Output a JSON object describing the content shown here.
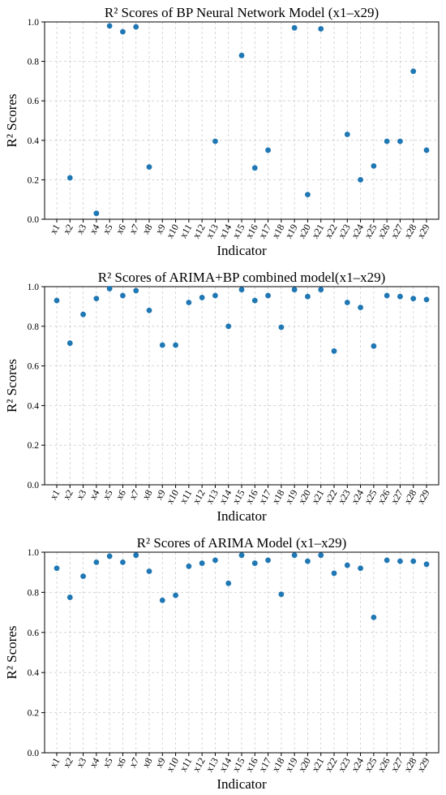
{
  "figure": {
    "colors": {
      "point": "#1f77b4",
      "grid": "#cccccc",
      "axis": "#000000"
    }
  },
  "chart_data": [
    {
      "type": "scatter",
      "title": "R² Scores of BP Neural Network Model (x1–x29)",
      "xlabel": "Indicator",
      "ylabel": "R² Scores",
      "ylim": [
        0.0,
        1.0
      ],
      "yticks": [
        "0.0",
        "0.2",
        "0.4",
        "0.6",
        "0.8",
        "1.0"
      ],
      "grid": true,
      "categories": [
        "x1",
        "x2",
        "x3",
        "x4",
        "x5",
        "x6",
        "x7",
        "x8",
        "x9",
        "x10",
        "x11",
        "x12",
        "x13",
        "x14",
        "x15",
        "x16",
        "x17",
        "x18",
        "x19",
        "x20",
        "x21",
        "x22",
        "x23",
        "x24",
        "x25",
        "x26",
        "x27",
        "x28",
        "x29"
      ],
      "values": [
        null,
        0.21,
        null,
        0.03,
        0.98,
        0.95,
        0.975,
        0.265,
        null,
        null,
        null,
        null,
        0.395,
        null,
        0.83,
        0.26,
        0.35,
        null,
        0.97,
        0.125,
        0.965,
        null,
        0.43,
        0.2,
        0.27,
        0.395,
        0.395,
        0.75,
        0.35
      ]
    },
    {
      "type": "scatter",
      "title": "R² Scores of ARIMA+BP combined model(x1–x29)",
      "xlabel": "Indicator",
      "ylabel": "R² Scores",
      "ylim": [
        0.0,
        1.0
      ],
      "yticks": [
        "0.0",
        "0.2",
        "0.4",
        "0.6",
        "0.8",
        "1.0"
      ],
      "grid": true,
      "categories": [
        "x1",
        "x2",
        "x3",
        "x4",
        "x5",
        "x6",
        "x7",
        "x8",
        "x9",
        "x10",
        "x11",
        "x12",
        "x13",
        "x14",
        "x15",
        "x16",
        "x17",
        "x18",
        "x19",
        "x20",
        "x21",
        "x22",
        "x23",
        "x24",
        "x25",
        "x26",
        "x27",
        "x28",
        "x29"
      ],
      "values": [
        0.93,
        0.715,
        0.86,
        0.94,
        0.99,
        0.955,
        0.98,
        0.88,
        0.705,
        0.705,
        0.92,
        0.945,
        0.955,
        0.8,
        0.985,
        0.93,
        0.955,
        0.795,
        0.985,
        0.95,
        0.985,
        0.675,
        0.92,
        0.895,
        0.7,
        0.955,
        0.95,
        0.94,
        0.935
      ]
    },
    {
      "type": "scatter",
      "title": "R² Scores of ARIMA Model (x1–x29)",
      "xlabel": "Indicator",
      "ylabel": "R² Scores",
      "ylim": [
        0.0,
        1.0
      ],
      "yticks": [
        "0.0",
        "0.2",
        "0.4",
        "0.6",
        "0.8",
        "1.0"
      ],
      "grid": true,
      "categories": [
        "x1",
        "x2",
        "x3",
        "x4",
        "x5",
        "x6",
        "x7",
        "x8",
        "x9",
        "x10",
        "x11",
        "x12",
        "x13",
        "x14",
        "x15",
        "x16",
        "x17",
        "x18",
        "x19",
        "x20",
        "x21",
        "x22",
        "x23",
        "x24",
        "x25",
        "x26",
        "x27",
        "x28",
        "x29"
      ],
      "values": [
        0.92,
        0.775,
        0.88,
        0.95,
        0.98,
        0.95,
        0.985,
        0.905,
        0.76,
        0.785,
        0.93,
        0.945,
        0.96,
        0.845,
        0.985,
        0.945,
        0.96,
        0.79,
        0.985,
        0.955,
        0.985,
        0.895,
        0.935,
        0.92,
        0.675,
        0.96,
        0.955,
        0.955,
        0.94
      ]
    }
  ]
}
